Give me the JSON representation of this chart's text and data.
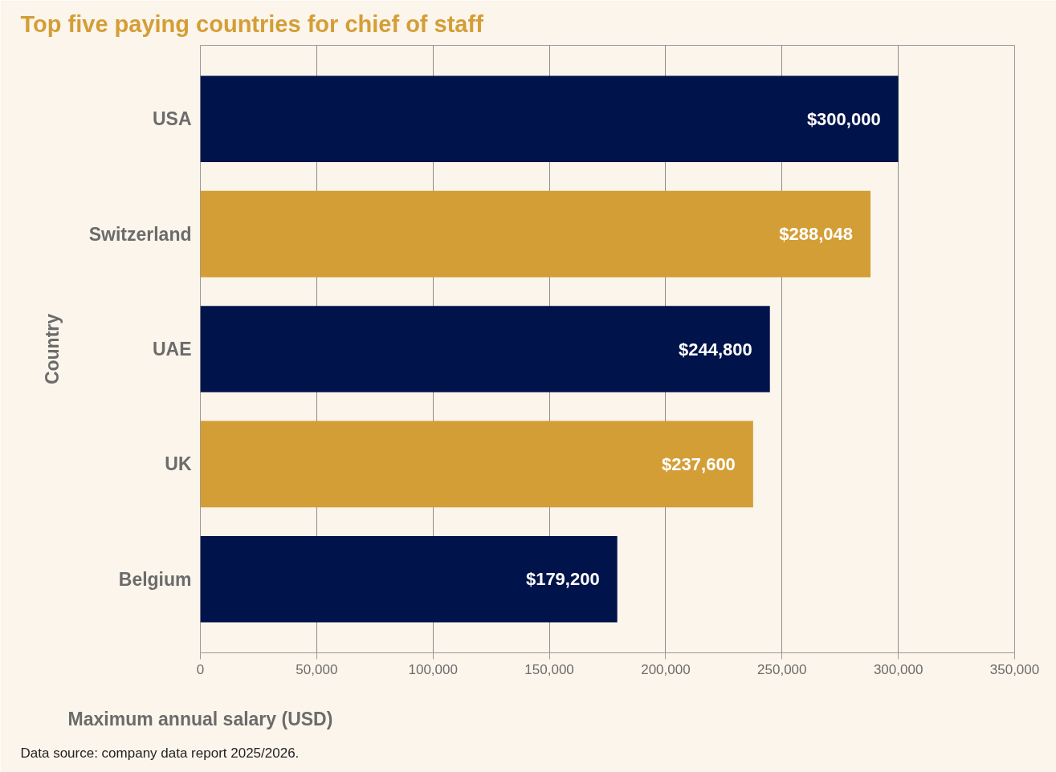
{
  "chart_data": {
    "type": "bar",
    "orientation": "horizontal",
    "title": "Top five paying countries for chief of staff",
    "xlabel": "Maximum annual salary (USD)",
    "ylabel": "Country",
    "categories": [
      "USA",
      "Switzerland",
      "UAE",
      "UK",
      "Belgium"
    ],
    "values": [
      300000,
      288048,
      244800,
      237600,
      179200
    ],
    "colors": [
      "#00134a",
      "#d49e36",
      "#00134a",
      "#d49e36",
      "#00134a"
    ],
    "value_labels": [
      "$300,000",
      "$288,048",
      "$244,800",
      "$237,600",
      "$179,200"
    ],
    "xlim": [
      0,
      350000
    ],
    "xticks": [
      {
        "value": 0,
        "label": "0"
      },
      {
        "value": 50000,
        "label": "50,000"
      },
      {
        "value": 100000,
        "label": "100,000"
      },
      {
        "value": 150000,
        "label": "150,000"
      },
      {
        "value": 200000,
        "label": "200,000"
      },
      {
        "value": 250000,
        "label": "250,000"
      },
      {
        "value": 300000,
        "label": "300,000"
      },
      {
        "value": 350000,
        "label": "350,000"
      }
    ],
    "grid": "x",
    "annotations": [
      "Data source: company data report 2025/2026."
    ]
  }
}
